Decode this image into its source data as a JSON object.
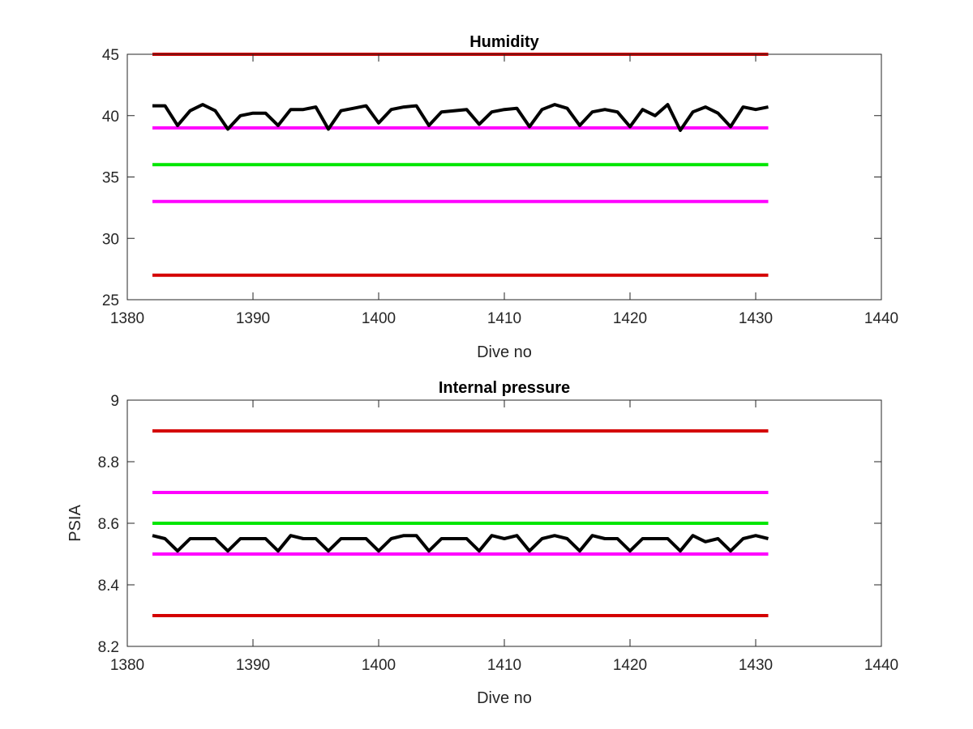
{
  "chart_data": [
    {
      "type": "line",
      "title": "Humidity",
      "xlabel": "Dive no",
      "ylabel": "",
      "xlim": [
        1380,
        1440
      ],
      "ylim": [
        25,
        45
      ],
      "xticks": [
        "1380",
        "1390",
        "1400",
        "1410",
        "1420",
        "1430",
        "1440"
      ],
      "yticks": [
        "25",
        "30",
        "35",
        "40",
        "45"
      ],
      "grid": false,
      "series": [
        {
          "color": "#d40000",
          "x": [
            1382,
            1431
          ],
          "y": [
            45,
            45
          ]
        },
        {
          "color": "#ff00ff",
          "x": [
            1382,
            1431
          ],
          "y": [
            39,
            39
          ]
        },
        {
          "color": "#00e600",
          "x": [
            1382,
            1431
          ],
          "y": [
            36,
            36
          ]
        },
        {
          "color": "#ff00ff",
          "x": [
            1382,
            1431
          ],
          "y": [
            33,
            33
          ]
        },
        {
          "color": "#d40000",
          "x": [
            1382,
            1431
          ],
          "y": [
            27,
            27
          ]
        },
        {
          "color": "#000000",
          "x": [
            1382,
            1383,
            1384,
            1385,
            1386,
            1387,
            1388,
            1389,
            1390,
            1391,
            1392,
            1393,
            1394,
            1395,
            1396,
            1397,
            1398,
            1399,
            1400,
            1401,
            1402,
            1403,
            1404,
            1405,
            1406,
            1407,
            1408,
            1409,
            1410,
            1411,
            1412,
            1413,
            1414,
            1415,
            1416,
            1417,
            1418,
            1419,
            1420,
            1421,
            1422,
            1423,
            1424,
            1425,
            1426,
            1427,
            1428,
            1429,
            1430,
            1431
          ],
          "y": [
            40.8,
            40.8,
            39.2,
            40.4,
            40.9,
            40.4,
            38.9,
            40.0,
            40.2,
            40.2,
            39.2,
            40.5,
            40.5,
            40.7,
            38.9,
            40.4,
            40.6,
            40.8,
            39.4,
            40.5,
            40.7,
            40.8,
            39.2,
            40.3,
            40.4,
            40.5,
            39.3,
            40.3,
            40.5,
            40.6,
            39.1,
            40.5,
            40.9,
            40.6,
            39.2,
            40.3,
            40.5,
            40.3,
            39.1,
            40.5,
            40.0,
            40.9,
            38.8,
            40.3,
            40.7,
            40.2,
            39.1,
            40.7,
            40.5,
            40.7
          ]
        }
      ]
    },
    {
      "type": "line",
      "title": "Internal pressure",
      "xlabel": "Dive no",
      "ylabel": "PSIA",
      "xlim": [
        1380,
        1440
      ],
      "ylim": [
        8.2,
        9
      ],
      "xticks": [
        "1380",
        "1390",
        "1400",
        "1410",
        "1420",
        "1430",
        "1440"
      ],
      "yticks": [
        "8.2",
        "8.4",
        "8.6",
        "8.8",
        "9"
      ],
      "grid": false,
      "series": [
        {
          "color": "#d40000",
          "x": [
            1382,
            1431
          ],
          "y": [
            8.9,
            8.9
          ]
        },
        {
          "color": "#ff00ff",
          "x": [
            1382,
            1431
          ],
          "y": [
            8.7,
            8.7
          ]
        },
        {
          "color": "#00e600",
          "x": [
            1382,
            1431
          ],
          "y": [
            8.6,
            8.6
          ]
        },
        {
          "color": "#ff00ff",
          "x": [
            1382,
            1431
          ],
          "y": [
            8.5,
            8.5
          ]
        },
        {
          "color": "#d40000",
          "x": [
            1382,
            1431
          ],
          "y": [
            8.3,
            8.3
          ]
        },
        {
          "color": "#000000",
          "x": [
            1382,
            1383,
            1384,
            1385,
            1386,
            1387,
            1388,
            1389,
            1390,
            1391,
            1392,
            1393,
            1394,
            1395,
            1396,
            1397,
            1398,
            1399,
            1400,
            1401,
            1402,
            1403,
            1404,
            1405,
            1406,
            1407,
            1408,
            1409,
            1410,
            1411,
            1412,
            1413,
            1414,
            1415,
            1416,
            1417,
            1418,
            1419,
            1420,
            1421,
            1422,
            1423,
            1424,
            1425,
            1426,
            1427,
            1428,
            1429,
            1430,
            1431
          ],
          "y": [
            8.56,
            8.55,
            8.51,
            8.55,
            8.55,
            8.55,
            8.51,
            8.55,
            8.55,
            8.55,
            8.51,
            8.56,
            8.55,
            8.55,
            8.51,
            8.55,
            8.55,
            8.55,
            8.51,
            8.55,
            8.56,
            8.56,
            8.51,
            8.55,
            8.55,
            8.55,
            8.51,
            8.56,
            8.55,
            8.56,
            8.51,
            8.55,
            8.56,
            8.55,
            8.51,
            8.56,
            8.55,
            8.55,
            8.51,
            8.55,
            8.55,
            8.55,
            8.51,
            8.56,
            8.54,
            8.55,
            8.51,
            8.55,
            8.56,
            8.55
          ]
        }
      ]
    }
  ]
}
